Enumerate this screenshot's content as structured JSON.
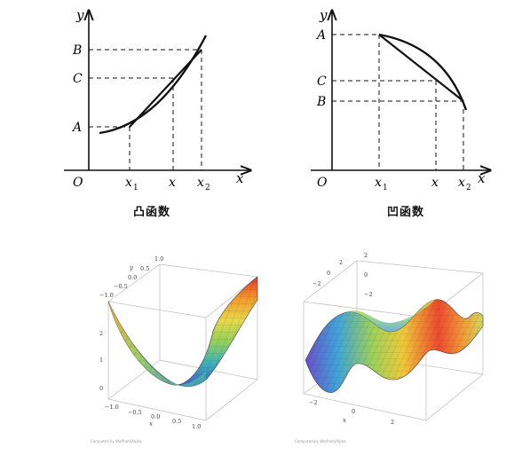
{
  "top_left": {
    "caption": "凸函数",
    "axis_y": "y",
    "axis_x": "x",
    "origin": "O",
    "y_labels": [
      "B",
      "C",
      "A"
    ],
    "x_labels": [
      {
        "main": "x",
        "sub": "1"
      },
      {
        "main": "x",
        "sub": ""
      },
      {
        "main": "x",
        "sub": "2"
      }
    ]
  },
  "top_right": {
    "caption": "凹函数",
    "axis_y": "y",
    "axis_x": "x",
    "origin": "O",
    "y_labels": [
      "A",
      "C",
      "B"
    ],
    "x_labels": [
      {
        "main": "x",
        "sub": "1"
      },
      {
        "main": "x",
        "sub": ""
      },
      {
        "main": "x",
        "sub": "2"
      }
    ]
  },
  "bottom_left": {
    "ticks_y_axis": [
      "1.0",
      "0.5",
      "0.0",
      "−0.5",
      "−1.0"
    ],
    "y_axis_label": "y",
    "ticks_z": [
      "2",
      "1",
      "0"
    ],
    "ticks_x": [
      "−1.0",
      "−0.5",
      "0.0",
      "0.5",
      "1.0"
    ],
    "x_axis_label": "x",
    "credit": "Computed by Wolfram|Alpha"
  },
  "bottom_right": {
    "ticks_top": [
      "2",
      "0",
      "−2"
    ],
    "ticks_z": [
      "2",
      "0",
      "−2"
    ],
    "ticks_x": [
      "−2",
      "0",
      "2"
    ],
    "x_axis_label": "x",
    "credit": "Computed by Wolfram|Alpha"
  }
}
